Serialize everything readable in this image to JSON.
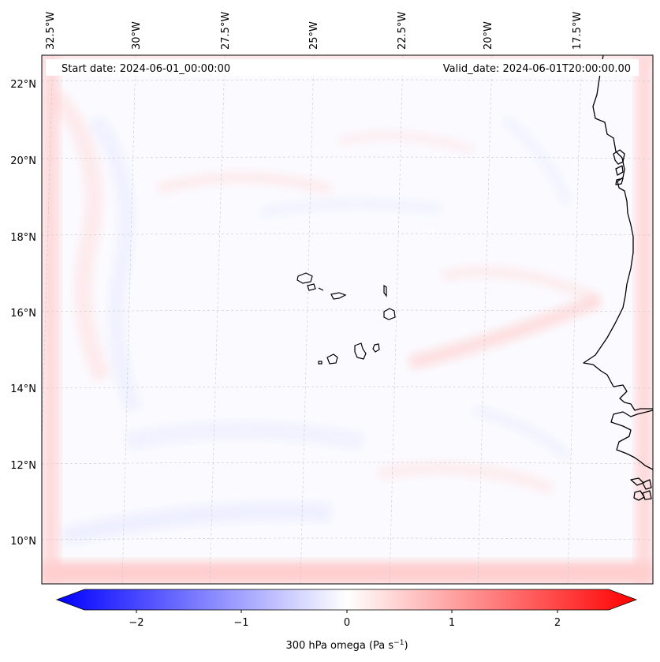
{
  "map": {
    "start_date_label": "Start date: 2024-06-01_00:00:00",
    "valid_date_label": "Valid_date: 2024-06-01T20:00:00.00",
    "lon_ticks": [
      "32.5°W",
      "30°W",
      "27.5°W",
      "25°W",
      "22.5°W",
      "20°W",
      "17.5°W"
    ],
    "lat_ticks": [
      "22°N",
      "20°N",
      "18°N",
      "16°N",
      "14°N",
      "12°N",
      "10°N"
    ],
    "gridlines": true,
    "extent": {
      "lon_min": -33.0,
      "lon_max": -15.7,
      "lat_min": 8.9,
      "lat_max": 22.7
    },
    "colors": {
      "low": "#0000ff",
      "mid": "#ffffff",
      "high": "#ff0000",
      "coast": "#000000",
      "grid": "#c8c8c8"
    }
  },
  "colorbar": {
    "label_main": "300 hPa omega (Pa s",
    "label_exp": "−1",
    "label_close": ")",
    "tick_labels": [
      "−2",
      "−1",
      "0",
      "1",
      "2"
    ],
    "range": [
      -2.5,
      2.5
    ],
    "extend": "both"
  }
}
